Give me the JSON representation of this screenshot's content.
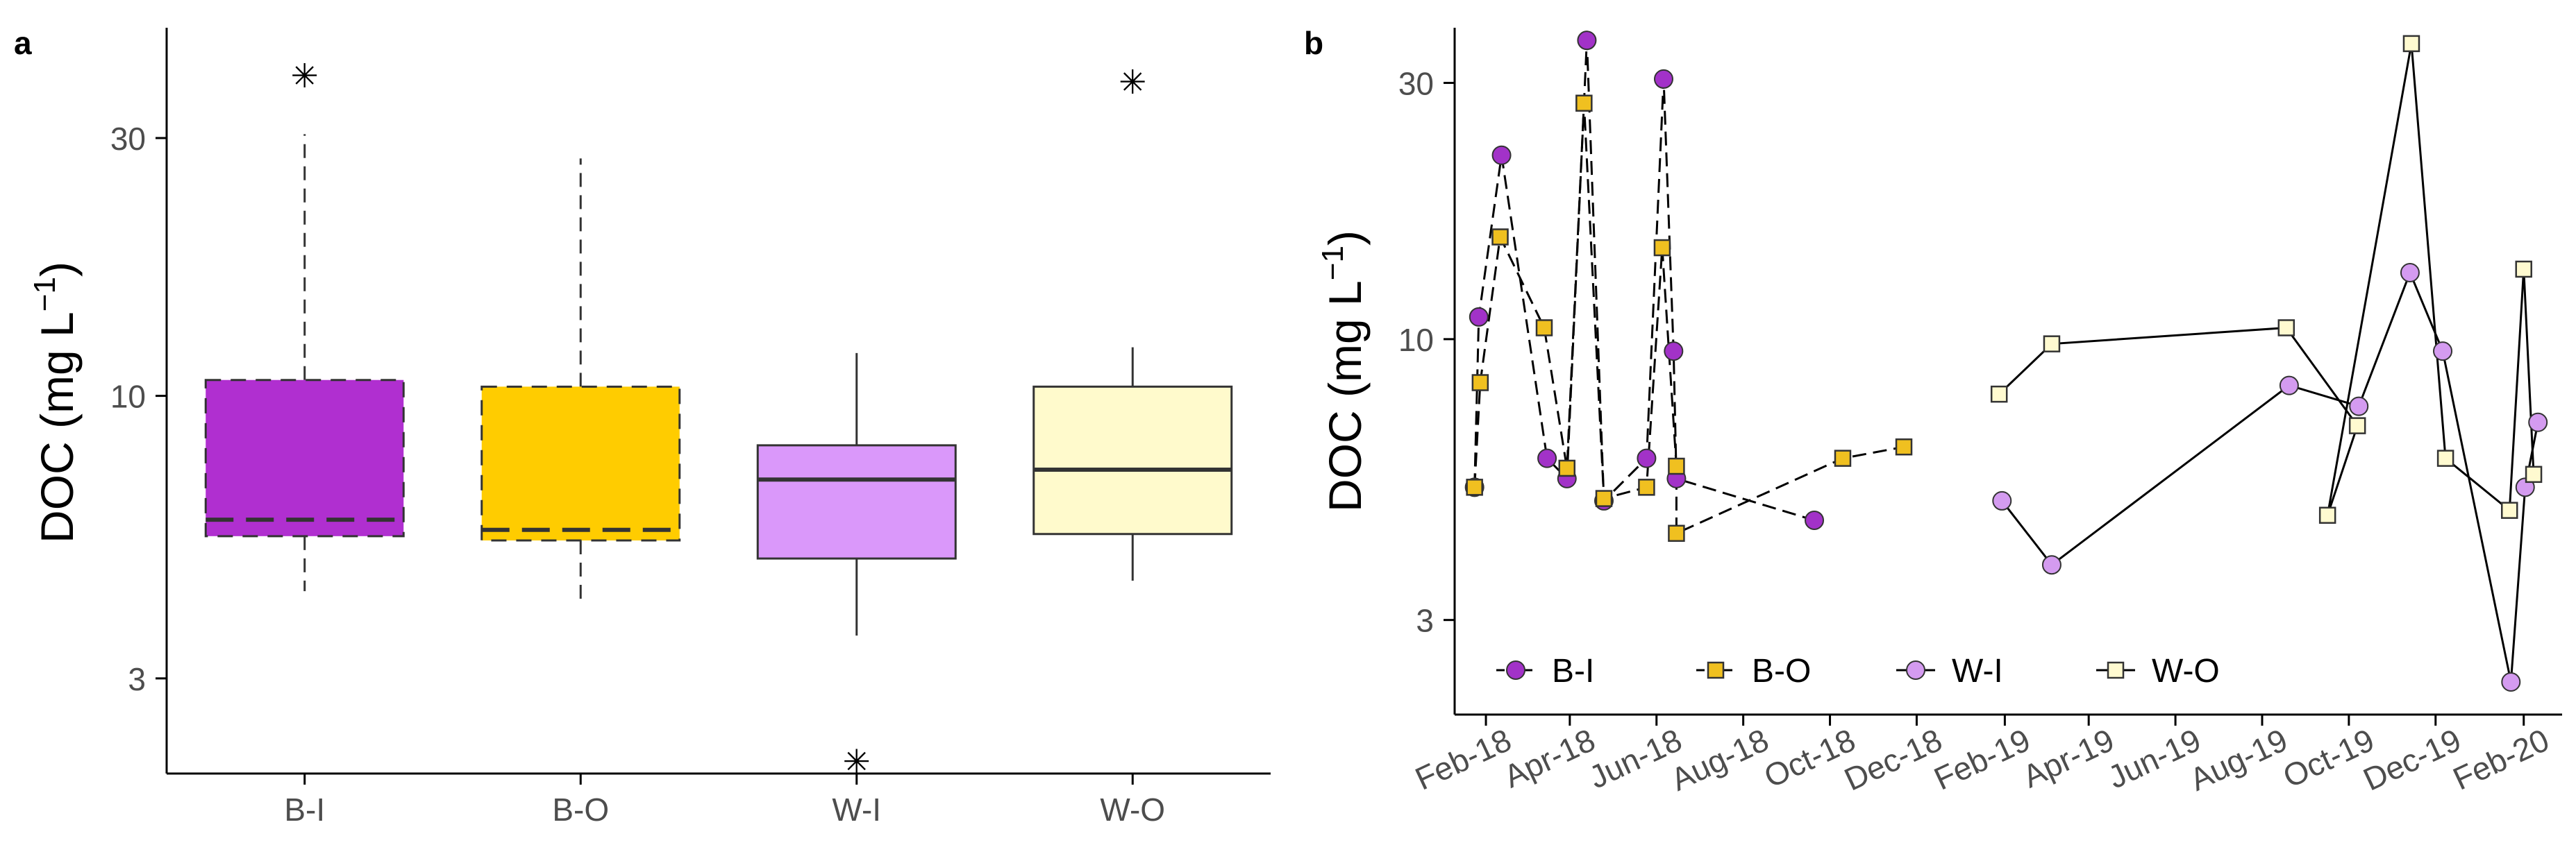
{
  "chart_data": [
    {
      "panel_label": "a",
      "type": "box",
      "ylabel": "DOC (mg L",
      "ylabel_sup": "−1",
      "ylabel_close": ")",
      "y_scale": "log",
      "ylim": [
        2.0,
        48.0
      ],
      "yticks": [
        3,
        10,
        30
      ],
      "categories": [
        "B-I",
        "B-O",
        "W-I",
        "W-O"
      ],
      "boxes": [
        {
          "name": "B-I",
          "q1": 5.5,
          "median": 5.9,
          "q3": 10.7,
          "whisker_low": 4.35,
          "whisker_high": 30.5,
          "outliers": [
            39
          ],
          "color": "#B02FD0",
          "border": "dashed"
        },
        {
          "name": "B-O",
          "q1": 5.4,
          "median": 5.65,
          "q3": 10.4,
          "whisker_low": 4.2,
          "whisker_high": 27.5,
          "outliers": [],
          "color": "#FFCC00",
          "border": "dashed"
        },
        {
          "name": "W-I",
          "q1": 5.0,
          "median": 7.0,
          "q3": 8.1,
          "whisker_low": 3.6,
          "whisker_high": 12.0,
          "outliers": [
            2.1
          ],
          "color": "#DA98FA",
          "border": "solid"
        },
        {
          "name": "W-O",
          "q1": 5.55,
          "median": 7.3,
          "q3": 10.4,
          "whisker_low": 4.55,
          "whisker_high": 12.3,
          "outliers": [
            38
          ],
          "color": "#FFFACC",
          "border": "solid"
        }
      ]
    },
    {
      "panel_label": "b",
      "type": "line",
      "ylabel": "DOC (mg L",
      "ylabel_sup": "−1",
      "ylabel_close": ")",
      "y_scale": "log",
      "ylim": [
        2.0,
        38.0
      ],
      "yticks": [
        3,
        10,
        30
      ],
      "xlim": [
        "2018-01-10",
        "2020-02-28"
      ],
      "xticks": [
        {
          "label": "Feb-18",
          "date": "2018-02-01"
        },
        {
          "label": "Apr-18",
          "date": "2018-04-01"
        },
        {
          "label": "Jun-18",
          "date": "2018-06-01"
        },
        {
          "label": "Aug-18",
          "date": "2018-08-01"
        },
        {
          "label": "Oct-18",
          "date": "2018-10-01"
        },
        {
          "label": "Dec-18",
          "date": "2018-12-01"
        },
        {
          "label": "Feb-19",
          "date": "2019-02-01"
        },
        {
          "label": "Apr-19",
          "date": "2019-04-01"
        },
        {
          "label": "Jun-19",
          "date": "2019-06-01"
        },
        {
          "label": "Aug-19",
          "date": "2019-08-01"
        },
        {
          "label": "Oct-19",
          "date": "2019-10-01"
        },
        {
          "label": "Dec-19",
          "date": "2019-12-01"
        },
        {
          "label": "Feb-20",
          "date": "2020-02-01"
        }
      ],
      "legend_position": "bottom-left",
      "series": [
        {
          "name": "B-I",
          "marker": "circle",
          "color": "#A232C8",
          "line": "dashed",
          "points": [
            {
              "x": "2018-01-24",
              "y": 5.3
            },
            {
              "x": "2018-01-27",
              "y": 11.0
            },
            {
              "x": "2018-02-12",
              "y": 22.0
            },
            {
              "x": "2018-03-16",
              "y": 6.0
            },
            {
              "x": "2018-03-30",
              "y": 5.5
            },
            {
              "x": "2018-04-13",
              "y": 36.0
            },
            {
              "x": "2018-04-25",
              "y": 5.0
            },
            {
              "x": "2018-05-25",
              "y": 6.0
            },
            {
              "x": "2018-06-06",
              "y": 30.5
            },
            {
              "x": "2018-06-13",
              "y": 9.5
            },
            {
              "x": "2018-06-15",
              "y": 5.5
            },
            {
              "x": "2018-09-20",
              "y": 4.6
            }
          ]
        },
        {
          "name": "B-O",
          "marker": "square",
          "color": "#F0C020",
          "line": "dashed",
          "points": [
            {
              "x": "2018-01-24",
              "y": 5.3
            },
            {
              "x": "2018-01-28",
              "y": 8.3
            },
            {
              "x": "2018-02-11",
              "y": 15.5
            },
            {
              "x": "2018-03-14",
              "y": 10.5
            },
            {
              "x": "2018-03-30",
              "y": 5.75
            },
            {
              "x": "2018-04-11",
              "y": 27.5
            },
            {
              "x": "2018-04-25",
              "y": 5.05
            },
            {
              "x": "2018-05-25",
              "y": 5.3
            },
            {
              "x": "2018-06-05",
              "y": 14.8
            },
            {
              "x": "2018-06-15",
              "y": 5.8
            },
            {
              "x": "2018-06-15",
              "y": 4.35
            },
            {
              "x": "2018-10-10",
              "y": 6.0
            },
            {
              "x": "2018-11-22",
              "y": 6.3
            }
          ]
        },
        {
          "name": "W-I",
          "marker": "circle",
          "color": "#D49BF0",
          "line": "solid",
          "points": [
            {
              "x": "2019-01-30",
              "y": 5.0
            },
            {
              "x": "2019-03-06",
              "y": 3.8
            },
            {
              "x": "2019-08-20",
              "y": 8.2
            },
            {
              "x": "2019-10-08",
              "y": 7.5
            },
            {
              "x": "2019-11-13",
              "y": 13.3
            },
            {
              "x": "2019-12-06",
              "y": 9.5
            },
            {
              "x": "2020-01-23",
              "y": 2.3
            },
            {
              "x": "2020-02-02",
              "y": 5.3
            },
            {
              "x": "2020-02-11",
              "y": 7.0
            }
          ]
        },
        {
          "name": "W-O",
          "marker": "square",
          "color": "#FFFAD0",
          "line": "solid",
          "points": [
            {
              "x": "2019-01-28",
              "y": 7.9
            },
            {
              "x": "2019-03-06",
              "y": 9.8
            },
            {
              "x": "2019-08-18",
              "y": 10.5
            },
            {
              "x": "2019-10-07",
              "y": 6.9
            },
            {
              "x": "2019-09-16",
              "y": 4.7
            },
            {
              "x": "2019-11-14",
              "y": 35.5
            },
            {
              "x": "2019-12-08",
              "y": 6.0
            },
            {
              "x": "2020-01-22",
              "y": 4.8
            },
            {
              "x": "2020-02-01",
              "y": 13.5
            },
            {
              "x": "2020-02-08",
              "y": 5.6
            }
          ]
        }
      ]
    }
  ]
}
